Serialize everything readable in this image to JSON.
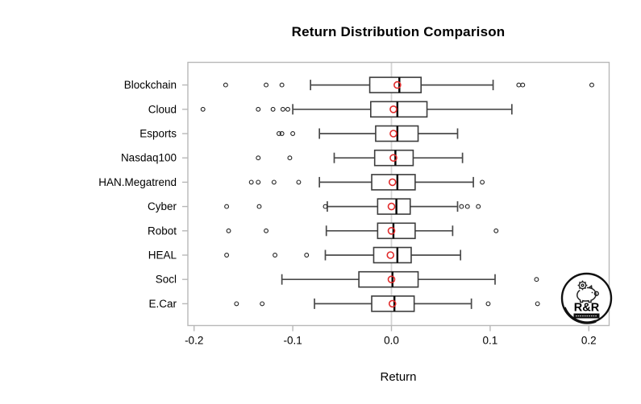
{
  "title": "Return Distribution Comparison",
  "x_axis": {
    "label": "Return",
    "tick_labels": [
      "-0.2",
      "-0.1",
      "0.0",
      "0.1",
      "0.2"
    ],
    "tick_values": [
      -0.2,
      -0.1,
      0.0,
      0.1,
      0.2
    ]
  },
  "chart_data": {
    "type": "boxplot",
    "orientation": "horizontal",
    "title": "Return Distribution Comparison",
    "xlabel": "Return",
    "xlim": [
      -0.21,
      0.22
    ],
    "x_ticks": [
      -0.2,
      -0.1,
      0.0,
      0.1,
      0.2
    ],
    "zero_reference_line": 0.0,
    "grid": false,
    "mean_marker": "open-red-circle",
    "series": [
      {
        "name": "Blockchain",
        "whisker_low": -0.082,
        "q1": -0.022,
        "median": 0.008,
        "q3": 0.03,
        "whisker_high": 0.103,
        "mean": 0.006,
        "outliers": [
          -0.168,
          -0.127,
          -0.111,
          0.129,
          0.133,
          0.203
        ]
      },
      {
        "name": "Cloud",
        "whisker_low": -0.1,
        "q1": -0.021,
        "median": 0.006,
        "q3": 0.036,
        "whisker_high": 0.122,
        "mean": 0.002,
        "outliers": [
          -0.191,
          -0.135,
          -0.12,
          -0.11,
          -0.105
        ]
      },
      {
        "name": "Esports",
        "whisker_low": -0.073,
        "q1": -0.016,
        "median": 0.006,
        "q3": 0.027,
        "whisker_high": 0.067,
        "mean": 0.002,
        "outliers": [
          -0.114,
          -0.111,
          -0.1
        ]
      },
      {
        "name": "Nasdaq100",
        "whisker_low": -0.058,
        "q1": -0.017,
        "median": 0.004,
        "q3": 0.022,
        "whisker_high": 0.072,
        "mean": 0.002,
        "outliers": [
          -0.135,
          -0.103
        ]
      },
      {
        "name": "HAN.Megatrend",
        "whisker_low": -0.073,
        "q1": -0.02,
        "median": 0.006,
        "q3": 0.024,
        "whisker_high": 0.083,
        "mean": 0.001,
        "outliers": [
          -0.142,
          -0.135,
          -0.119,
          -0.094,
          0.092
        ]
      },
      {
        "name": "Cyber",
        "whisker_low": -0.065,
        "q1": -0.014,
        "median": 0.005,
        "q3": 0.019,
        "whisker_high": 0.067,
        "mean": 0.0,
        "outliers": [
          -0.167,
          -0.134,
          -0.067,
          0.071,
          0.077,
          0.088
        ]
      },
      {
        "name": "Robot",
        "whisker_low": -0.066,
        "q1": -0.014,
        "median": 0.002,
        "q3": 0.024,
        "whisker_high": 0.062,
        "mean": 0.0,
        "outliers": [
          -0.165,
          -0.127,
          0.106
        ]
      },
      {
        "name": "HEAL",
        "whisker_low": -0.067,
        "q1": -0.018,
        "median": 0.006,
        "q3": 0.02,
        "whisker_high": 0.07,
        "mean": -0.001,
        "outliers": [
          -0.167,
          -0.118,
          -0.086
        ]
      },
      {
        "name": "Socl",
        "whisker_low": -0.111,
        "q1": -0.033,
        "median": 0.001,
        "q3": 0.027,
        "whisker_high": 0.105,
        "mean": 0.0,
        "outliers": [
          0.147
        ]
      },
      {
        "name": "E.Car",
        "whisker_low": -0.078,
        "q1": -0.02,
        "median": 0.003,
        "q3": 0.023,
        "whisker_high": 0.081,
        "mean": 0.001,
        "outliers": [
          -0.157,
          -0.131,
          0.098,
          0.148
        ]
      }
    ]
  },
  "colors": {
    "background": "#ffffff",
    "axis": "#b8b8b8",
    "zero_line": "#d4d4d4",
    "box_border": "#3d3d3d",
    "whisker": "#4a4a4a",
    "median": "#000000",
    "mean_marker": "#e12b2b",
    "outlier": "#222222",
    "text": "#000000"
  },
  "logo": {
    "text": "R&R",
    "icon": "piggy-bank-gear-icon"
  }
}
